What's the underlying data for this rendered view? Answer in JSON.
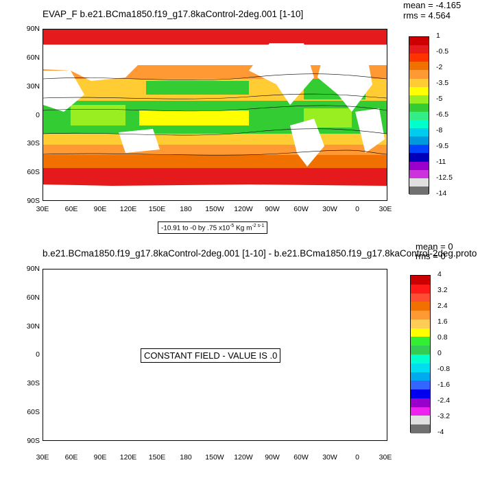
{
  "panel1": {
    "title": "EVAP_F b.e21.BCma1850.f19_g17.8kaControl-2deg.001 [1-10]",
    "mean": "mean = -4.165",
    "rms": "rms = 4.564",
    "range_prefix": "-10.91 to -0 by .75 x10",
    "range_exp": "-5",
    "range_unit": " Kg m",
    "range_unit_exp": "-2 s-1",
    "lat_labels": [
      "90N",
      "60N",
      "30N",
      "0",
      "30S",
      "60S",
      "90S"
    ],
    "lon_labels": [
      "30E",
      "60E",
      "90E",
      "120E",
      "150E",
      "180",
      "150W",
      "120W",
      "90W",
      "60W",
      "30W",
      "0",
      "30E"
    ],
    "colorbar": {
      "labels": [
        "1",
        "-0.5",
        "-2",
        "-3.5",
        "-5",
        "-6.5",
        "-8",
        "-9.5",
        "-11",
        "-12.5",
        "-14"
      ],
      "colors": [
        "#cc0000",
        "#e41a1c",
        "#ff3300",
        "#f07000",
        "#ff9933",
        "#ffcc33",
        "#ffff00",
        "#99ee22",
        "#33cc33",
        "#33ee88",
        "#00ffcc",
        "#00ccee",
        "#0099dd",
        "#0044ff",
        "#0000bb",
        "#9900cc",
        "#cc33dd",
        "#e0e0e0",
        "#707070"
      ]
    }
  },
  "panel2": {
    "title": "b.e21.BCma1850.f19_g17.8kaControl-2deg.001 [1-10] - b.e21.BCma1850.f19_g17.8kaControl-2deg.proto",
    "mean": "mean = 0",
    "rms": "rms = 0",
    "constant_text": "CONSTANT FIELD - VALUE IS .0",
    "lat_labels": [
      "90N",
      "60N",
      "30N",
      "0",
      "30S",
      "60S",
      "90S"
    ],
    "lon_labels": [
      "30E",
      "60E",
      "90E",
      "120E",
      "150E",
      "180",
      "150W",
      "120W",
      "90W",
      "60W",
      "30W",
      "0",
      "30E"
    ],
    "colorbar": {
      "labels": [
        "4",
        "3.2",
        "2.4",
        "1.6",
        "0.8",
        "0",
        "-0.8",
        "-1.6",
        "-2.4",
        "-3.2",
        "-4"
      ],
      "colors": [
        "#cc0000",
        "#ff1a1a",
        "#ff4d33",
        "#f07000",
        "#ff9933",
        "#ffcc55",
        "#ffff00",
        "#33ee33",
        "#33cc55",
        "#00ffcc",
        "#00ddee",
        "#00aaee",
        "#3366ff",
        "#0000ee",
        "#9900cc",
        "#ee22ee",
        "#e0e0e0",
        "#707070"
      ]
    }
  }
}
